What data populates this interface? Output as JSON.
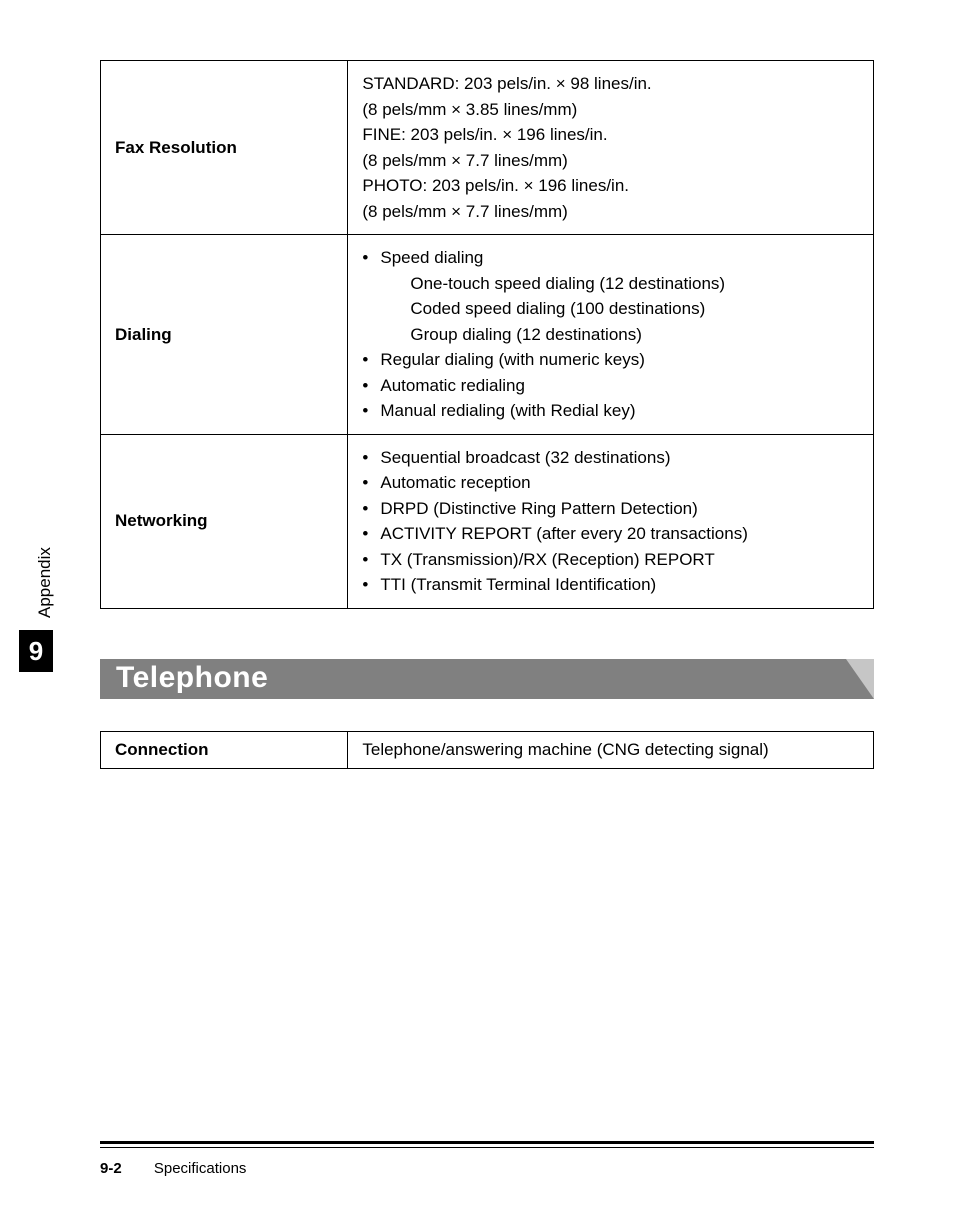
{
  "tables": {
    "main": {
      "rows": [
        {
          "label": "Fax Resolution",
          "lines": [
            "STANDARD: 203 pels/in. × 98 lines/in.",
            "(8 pels/mm × 3.85 lines/mm)",
            "FINE: 203 pels/in. × 196 lines/in.",
            "(8 pels/mm × 7.7 lines/mm)",
            "PHOTO: 203 pels/in. × 196 lines/in.",
            "(8 pels/mm × 7.7 lines/mm)"
          ]
        },
        {
          "label": "Dialing",
          "bullets": [
            {
              "text": "Speed dialing",
              "sub": [
                "One-touch speed dialing (12 destinations)",
                "Coded speed dialing (100 destinations)",
                "Group dialing (12 destinations)"
              ]
            },
            {
              "text": "Regular dialing (with numeric keys)"
            },
            {
              "text": "Automatic redialing"
            },
            {
              "text": "Manual redialing (with Redial key)"
            }
          ]
        },
        {
          "label": "Networking",
          "bullets": [
            {
              "text": "Sequential broadcast (32 destinations)"
            },
            {
              "text": "Automatic reception"
            },
            {
              "text": "DRPD (Distinctive Ring Pattern Detection)"
            },
            {
              "text": "ACTIVITY REPORT (after every 20 transactions)"
            },
            {
              "text": "TX (Transmission)/RX (Reception) REPORT"
            },
            {
              "text": "TTI (Transmit Terminal Identification)"
            }
          ]
        }
      ]
    },
    "telephone": {
      "rows": [
        {
          "label": "Connection",
          "value": "Telephone/answering machine (CNG detecting signal)"
        }
      ]
    }
  },
  "section": {
    "title": "Telephone"
  },
  "sidetab": {
    "text": "Appendix",
    "number": "9"
  },
  "footer": {
    "page": "9-2",
    "title": "Specifications"
  },
  "colors": {
    "section_bar": "#808080",
    "number_box": "#000000",
    "text": "#000000",
    "bg": "#ffffff"
  }
}
